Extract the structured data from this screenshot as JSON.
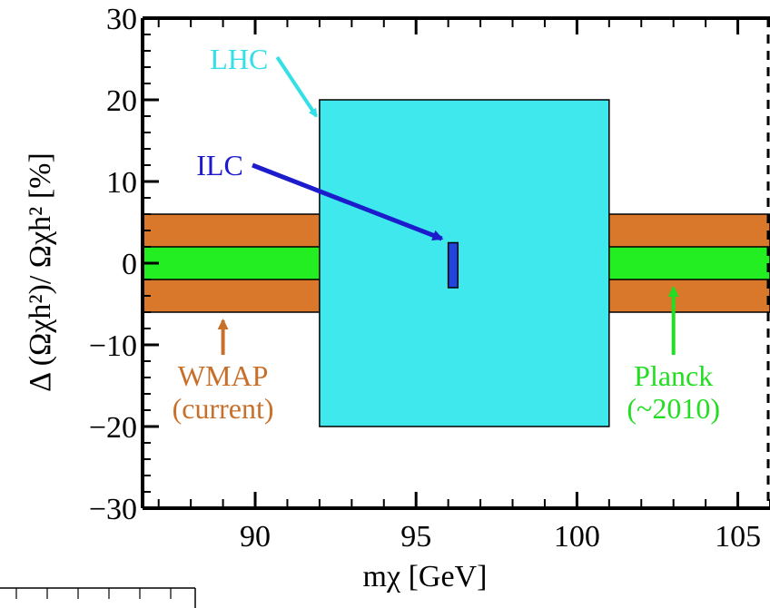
{
  "chart_data": {
    "type": "area",
    "xlim": [
      86.5,
      106
    ],
    "ylim": [
      -30,
      30
    ],
    "x_ticks": [
      90,
      95,
      100,
      105
    ],
    "x_tick_labels": [
      "90",
      "95",
      "100",
      "105"
    ],
    "y_ticks": [
      -30,
      -20,
      -10,
      0,
      10,
      20,
      30
    ],
    "y_tick_labels": [
      "−30",
      "−20",
      "−10",
      "0",
      "10",
      "20",
      "30"
    ],
    "xlabel": "mχ [GeV]",
    "ylabel": "Δ (Ωχh²)/ Ωχh²  [%]",
    "grid": false,
    "regions": [
      {
        "name": "WMAP",
        "x": [
          86.5,
          106
        ],
        "y": [
          -6,
          6
        ],
        "color": "#d9782a"
      },
      {
        "name": "Planck",
        "x": [
          86.5,
          106
        ],
        "y": [
          -2,
          2
        ],
        "color": "#22ee22"
      },
      {
        "name": "LHC",
        "x": [
          92,
          101
        ],
        "y": [
          -20,
          20
        ],
        "color": "#3ee8ec"
      },
      {
        "name": "ILC",
        "x": [
          96,
          96.3
        ],
        "y": [
          -3,
          2.5
        ],
        "color": "#2244dd"
      }
    ],
    "annotations": [
      {
        "label": "LHC",
        "color": "#33e0e8",
        "text_at": [
          89.5,
          25
        ],
        "arrow_to": [
          91.9,
          18
        ]
      },
      {
        "label": "ILC",
        "color": "#1c1ccc",
        "text_at": [
          88.9,
          12
        ],
        "arrow_to": [
          95.8,
          3
        ]
      },
      {
        "label": "WMAP",
        "sublabel": "(current)",
        "color": "#c8702a",
        "text_at": [
          89.0,
          -17
        ],
        "arrow_to": [
          89.0,
          -7
        ]
      },
      {
        "label": "Planck",
        "sublabel": "(~2010)",
        "color": "#22dd22",
        "text_at": [
          103.0,
          -17
        ],
        "arrow_to": [
          103.0,
          -3
        ]
      }
    ]
  }
}
